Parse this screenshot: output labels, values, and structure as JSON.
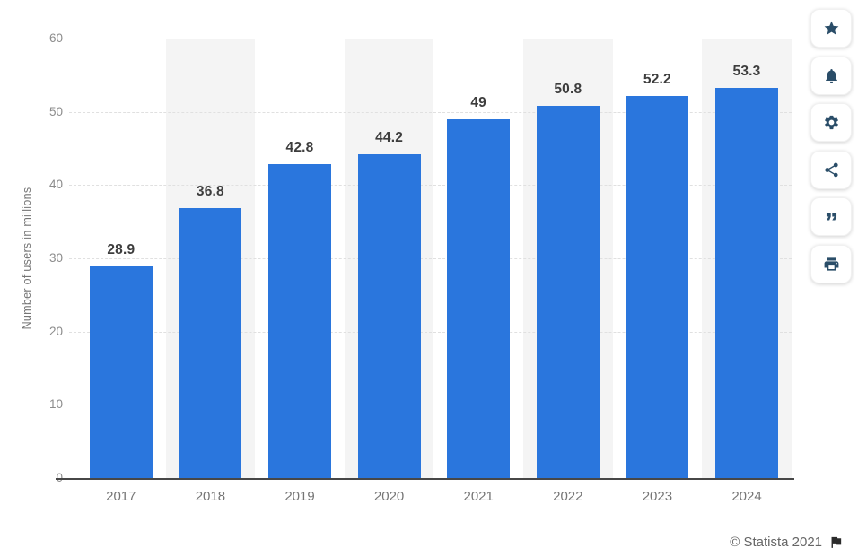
{
  "chart_data": {
    "type": "bar",
    "categories": [
      "2017",
      "2018",
      "2019",
      "2020",
      "2021",
      "2022",
      "2023",
      "2024"
    ],
    "values": [
      28.9,
      36.8,
      42.8,
      44.2,
      49,
      50.8,
      52.2,
      53.3
    ],
    "value_labels": [
      "28.9",
      "36.8",
      "42.8",
      "44.2",
      "49",
      "50.8",
      "52.2",
      "53.3"
    ],
    "title": "",
    "xlabel": "",
    "ylabel": "Number of users in millions",
    "y_ticks": [
      0,
      10,
      20,
      30,
      40,
      50,
      60
    ],
    "ylim": [
      0,
      60
    ],
    "grid": "horizontal-dashed",
    "legend": "none",
    "bar_color": "#2a76dd",
    "striped_columns": [
      1,
      3,
      5,
      7
    ],
    "stripe_color": "#f4f4f4"
  },
  "toolbar": {
    "buttons": [
      {
        "label": "favorite",
        "icon": "star-icon"
      },
      {
        "label": "alerts",
        "icon": "bell-icon"
      },
      {
        "label": "settings",
        "icon": "gear-icon"
      },
      {
        "label": "share",
        "icon": "share-icon"
      },
      {
        "label": "cite",
        "icon": "quote-icon"
      },
      {
        "label": "print",
        "icon": "printer-icon"
      }
    ]
  },
  "footer": {
    "attribution": "© Statista 2021",
    "flag_icon": "flag-icon"
  },
  "colors": {
    "bar": "#2a76dd",
    "icon": "#2a4d68",
    "grid": "#e0e0e0",
    "baseline": "#474747",
    "value_label": "#3d3d3d",
    "axis_text": "#757575"
  }
}
